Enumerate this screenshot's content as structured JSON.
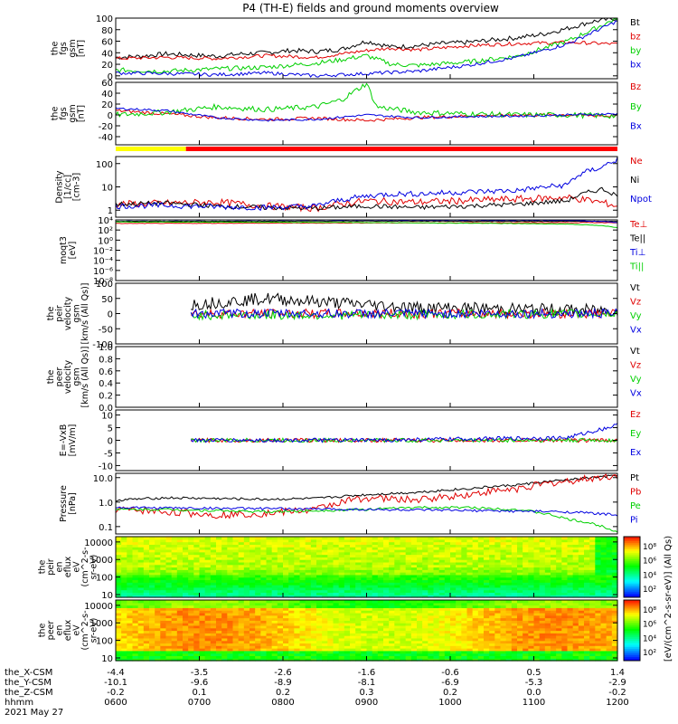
{
  "title": "P4 (TH-E) fields and ground moments overview",
  "colors": {
    "black": "#000000",
    "red": "#e00000",
    "green": "#00d000",
    "blue": "#0000e0",
    "yellow": "#ffff00",
    "barRed": "#ff0000"
  },
  "chart_data": [
    {
      "id": "fgs-gsm",
      "type": "line",
      "ylabel": [
        "the",
        "fgs",
        "gsm",
        "[nT]"
      ],
      "scale": "linear",
      "ylim": [
        -5,
        100
      ],
      "ticks": [
        "100",
        "80",
        "60",
        "40",
        "20",
        "0"
      ],
      "tickValues": [
        100,
        80,
        60,
        40,
        20,
        0
      ],
      "series": [
        {
          "name": "Bt",
          "color": "black",
          "x": [
            0,
            0.05,
            0.1,
            0.15,
            0.2,
            0.25,
            0.3,
            0.35,
            0.4,
            0.45,
            0.5,
            0.55,
            0.6,
            0.65,
            0.7,
            0.75,
            0.8,
            0.85,
            0.9,
            0.95,
            1
          ],
          "y": [
            32,
            34,
            38,
            36,
            34,
            38,
            40,
            44,
            42,
            46,
            60,
            50,
            52,
            56,
            58,
            62,
            66,
            72,
            82,
            94,
            100
          ],
          "noise": 4
        },
        {
          "name": "bz",
          "color": "red",
          "x": [
            0,
            0.1,
            0.2,
            0.3,
            0.4,
            0.5,
            0.55,
            0.6,
            0.7,
            0.8,
            0.9,
            1
          ],
          "y": [
            30,
            32,
            30,
            35,
            32,
            44,
            48,
            45,
            52,
            56,
            58,
            55
          ],
          "noise": 3
        },
        {
          "name": "by",
          "color": "green",
          "x": [
            0,
            0.1,
            0.2,
            0.3,
            0.4,
            0.45,
            0.5,
            0.55,
            0.6,
            0.7,
            0.8,
            0.9,
            1
          ],
          "y": [
            10,
            8,
            12,
            15,
            22,
            28,
            35,
            20,
            18,
            24,
            34,
            60,
            100
          ],
          "noise": 4
        },
        {
          "name": "bx",
          "color": "blue",
          "x": [
            0,
            0.1,
            0.2,
            0.3,
            0.4,
            0.5,
            0.6,
            0.7,
            0.8,
            0.9,
            1
          ],
          "y": [
            5,
            4,
            2,
            5,
            0,
            4,
            8,
            18,
            32,
            55,
            95
          ],
          "noise": 3
        }
      ]
    },
    {
      "id": "fgs-gsm-2",
      "type": "line",
      "ylabel": [
        "the",
        "fgs",
        "gsm",
        "[nT]"
      ],
      "scale": "linear",
      "ylim": [
        -55,
        60
      ],
      "ticks": [
        "60",
        "40",
        "20",
        "0",
        "-20",
        "-40"
      ],
      "tickValues": [
        60,
        40,
        20,
        0,
        -20,
        -40
      ],
      "series": [
        {
          "name": "Bz",
          "color": "red",
          "x": [
            0,
            0.1,
            0.2,
            0.3,
            0.4,
            0.5,
            0.6,
            0.7,
            0.8,
            0.9,
            1
          ],
          "y": [
            8,
            2,
            -5,
            -8,
            -6,
            -10,
            -5,
            -2,
            0,
            0,
            -2
          ],
          "noise": 3
        },
        {
          "name": "By",
          "color": "green",
          "x": [
            0,
            0.1,
            0.2,
            0.3,
            0.4,
            0.45,
            0.5,
            0.52,
            0.6,
            0.7,
            0.8,
            0.9,
            1
          ],
          "y": [
            0,
            5,
            15,
            10,
            15,
            28,
            58,
            15,
            5,
            2,
            0,
            0,
            -2
          ],
          "noise": 5
        },
        {
          "name": "Bx",
          "color": "blue",
          "x": [
            0,
            0.1,
            0.2,
            0.3,
            0.4,
            0.5,
            0.6,
            0.7,
            0.8,
            0.9,
            1
          ],
          "y": [
            12,
            8,
            -5,
            -10,
            -8,
            0,
            -5,
            -3,
            -2,
            0,
            2
          ],
          "noise": 2
        }
      ]
    },
    {
      "id": "density",
      "type": "line",
      "ylabel": [
        "Density",
        "[1/cc]",
        "[cm-3]"
      ],
      "scale": "log",
      "ylim": [
        0.5,
        200
      ],
      "ticks": [
        "100",
        "10",
        "1"
      ],
      "tickValues": [
        100,
        10,
        1
      ],
      "series": [
        {
          "name": "Ne",
          "color": "red",
          "x": [
            0,
            0.1,
            0.2,
            0.3,
            0.4,
            0.5,
            0.6,
            0.7,
            0.8,
            0.9,
            1
          ],
          "y": [
            1.8,
            2,
            2.2,
            1.5,
            1.2,
            2.5,
            2.2,
            2.6,
            3,
            3.5,
            1.5
          ],
          "noise": 0.15
        },
        {
          "name": "Ni",
          "color": "black",
          "x": [
            0,
            0.1,
            0.2,
            0.3,
            0.4,
            0.5,
            0.6,
            0.7,
            0.8,
            0.9,
            0.97,
            1
          ],
          "y": [
            1.8,
            2,
            1.5,
            1.3,
            1.2,
            1.5,
            1.3,
            1.5,
            1.8,
            2.5,
            8,
            4
          ],
          "noise": 0.1
        },
        {
          "name": "Npot",
          "color": "blue",
          "x": [
            0,
            0.1,
            0.2,
            0.3,
            0.4,
            0.5,
            0.55,
            0.6,
            0.7,
            0.8,
            0.9,
            0.97,
            1
          ],
          "y": [
            1.5,
            1.6,
            1.4,
            1.3,
            1.5,
            4,
            5,
            5,
            6,
            7,
            12,
            70,
            150
          ],
          "noise": 0.12
        }
      ]
    },
    {
      "id": "moqt3",
      "type": "line",
      "ylabel": [
        "moqt3",
        "[eV]"
      ],
      "scale": "log",
      "ylim": [
        1e-08,
        10000.0
      ],
      "ticks": [
        "10⁴",
        "10²",
        "10⁰",
        "10⁻²",
        "10⁻⁴",
        "10⁻⁶",
        "10⁻⁸"
      ],
      "tickValues": [
        10000,
        100,
        1,
        0.01,
        0.0001,
        1e-06,
        1e-08
      ],
      "series": [
        {
          "name": "Te⊥",
          "color": "red",
          "x": [
            0,
            0.5,
            1
          ],
          "y": [
            2000,
            2500,
            3000
          ],
          "noise": 0.05
        },
        {
          "name": "Te||",
          "color": "black",
          "x": [
            0,
            0.5,
            1
          ],
          "y": [
            5000,
            6000,
            5000
          ],
          "noise": 0.05
        },
        {
          "name": "Ti⊥",
          "color": "blue",
          "x": [
            0,
            0.5,
            0.9,
            1
          ],
          "y": [
            10000,
            9000,
            8000,
            3000
          ],
          "noise": 0.05
        },
        {
          "name": "Ti||",
          "color": "green",
          "x": [
            0,
            0.5,
            0.9,
            1
          ],
          "y": [
            4000,
            3000,
            1500,
            300
          ],
          "noise": 0.05
        }
      ]
    },
    {
      "id": "peir-velocity",
      "type": "line",
      "ylabel": [
        "the",
        "peir",
        "velocity",
        "gsm",
        "[km/s (All Qs)]"
      ],
      "scale": "linear",
      "ylim": [
        -100,
        100
      ],
      "ticks": [
        "100",
        "50",
        "0",
        "-50",
        "-100"
      ],
      "tickValues": [
        100,
        50,
        0,
        -50,
        -100
      ],
      "dataStart": 0.15,
      "series": [
        {
          "name": "Vt",
          "color": "black",
          "x": [
            0.15,
            0.3,
            0.4,
            0.5,
            0.6,
            0.8,
            1
          ],
          "y": [
            30,
            50,
            40,
            30,
            20,
            15,
            10
          ],
          "noise": 20
        },
        {
          "name": "Vz",
          "color": "red",
          "x": [
            0.15,
            0.5,
            1
          ],
          "y": [
            0,
            0,
            0
          ],
          "noise": 15
        },
        {
          "name": "Vy",
          "color": "green",
          "x": [
            0.15,
            0.5,
            1
          ],
          "y": [
            -5,
            -5,
            0
          ],
          "noise": 15
        },
        {
          "name": "Vx",
          "color": "blue",
          "x": [
            0.15,
            0.5,
            1
          ],
          "y": [
            0,
            0,
            0
          ],
          "noise": 15
        }
      ]
    },
    {
      "id": "peer-velocity",
      "type": "line",
      "ylabel": [
        "the",
        "peer",
        "velocity",
        "gsm",
        "[km/s (All Qs)]"
      ],
      "scale": "linear",
      "ylim": [
        0,
        1
      ],
      "ticks": [
        "1.0",
        "0.8",
        "0.6",
        "0.4",
        "0.2",
        "0.0"
      ],
      "tickValues": [
        1,
        0.8,
        0.6,
        0.4,
        0.2,
        0
      ],
      "series": [
        {
          "name": "Vt",
          "color": "black",
          "x": [],
          "y": []
        },
        {
          "name": "Vz",
          "color": "red",
          "x": [],
          "y": []
        },
        {
          "name": "Vy",
          "color": "green",
          "x": [],
          "y": []
        },
        {
          "name": "Vx",
          "color": "blue",
          "x": [],
          "y": []
        }
      ]
    },
    {
      "id": "e-vxb",
      "type": "line",
      "ylabel": [
        "E=-VxB",
        "[mV/m]"
      ],
      "scale": "linear",
      "ylim": [
        -12,
        12
      ],
      "ticks": [
        "10",
        "5",
        "0",
        "-5",
        "-10"
      ],
      "tickValues": [
        10,
        5,
        0,
        -5,
        -10
      ],
      "dataStart": 0.15,
      "series": [
        {
          "name": "Ez",
          "color": "red",
          "x": [
            0.15,
            0.5,
            1
          ],
          "y": [
            0,
            0,
            0
          ],
          "noise": 0.8
        },
        {
          "name": "Ey",
          "color": "green",
          "x": [
            0.15,
            0.5,
            1
          ],
          "y": [
            0,
            0,
            0
          ],
          "noise": 0.8
        },
        {
          "name": "Ex",
          "color": "blue",
          "x": [
            0.15,
            0.5,
            0.9,
            1
          ],
          "y": [
            0,
            0,
            1,
            6
          ],
          "noise": 0.8
        }
      ]
    },
    {
      "id": "pressure",
      "type": "line",
      "ylabel": [
        "Pressure",
        "[nPa]"
      ],
      "scale": "log",
      "ylim": [
        0.05,
        15
      ],
      "ticks": [
        "10.0",
        "1.0",
        "0.1"
      ],
      "tickValues": [
        10,
        1,
        0.1
      ],
      "series": [
        {
          "name": "Pt",
          "color": "black",
          "x": [
            0,
            0.1,
            0.2,
            0.3,
            0.4,
            0.5,
            0.6,
            0.7,
            0.8,
            0.9,
            1
          ],
          "y": [
            1.2,
            1.5,
            1.4,
            1.3,
            1.4,
            2,
            2.5,
            3.5,
            5,
            8,
            12
          ],
          "noise": 0.05
        },
        {
          "name": "Pb",
          "color": "red",
          "x": [
            0,
            0.1,
            0.2,
            0.3,
            0.4,
            0.5,
            0.6,
            0.7,
            0.8,
            0.9,
            1
          ],
          "y": [
            0.5,
            0.4,
            0.3,
            0.35,
            0.5,
            1.5,
            1.2,
            2,
            3.5,
            7,
            12
          ],
          "noise": 0.15
        },
        {
          "name": "Pe",
          "color": "green",
          "x": [
            0,
            0.1,
            0.2,
            0.3,
            0.4,
            0.5,
            0.6,
            0.7,
            0.8,
            0.9,
            1
          ],
          "y": [
            0.5,
            0.5,
            0.45,
            0.4,
            0.45,
            0.5,
            0.6,
            0.6,
            0.5,
            0.2,
            0.06
          ],
          "noise": 0.05
        },
        {
          "name": "Pi",
          "color": "blue",
          "x": [
            0,
            0.5,
            0.9,
            1
          ],
          "y": [
            0.6,
            0.5,
            0.4,
            0.3
          ],
          "noise": 0.05
        }
      ]
    },
    {
      "id": "peir-en-eflux",
      "type": "heatmap",
      "ylabel": [
        "the",
        "peir",
        "en",
        "eflux",
        "eV",
        "(cm^2-s-",
        "sr-eV)"
      ],
      "scale": "log",
      "ylim": [
        7,
        20000
      ],
      "ticks": [
        "10000",
        "1000",
        "100",
        "10"
      ],
      "tickValues": [
        10000,
        1000,
        100,
        10
      ],
      "colorbar": {
        "label": "[eV/(cm^2-s-sr-eV)] (All Qs)",
        "ticks": [
          "10⁸",
          "10⁶",
          "10⁴",
          "10²"
        ]
      }
    },
    {
      "id": "peer-en-eflux",
      "type": "heatmap",
      "ylabel": [
        "the",
        "peer",
        "en",
        "eflux",
        "eV",
        "(cm^2-s-",
        "sr-eV)"
      ],
      "scale": "log",
      "ylim": [
        7,
        20000
      ],
      "ticks": [
        "10000",
        "1000",
        "100",
        "10"
      ],
      "tickValues": [
        10000,
        1000,
        100,
        10
      ],
      "colorbar": {
        "label": "[eV/(cm^2-s-sr-eV)] (All Qs)",
        "ticks": [
          "10⁸",
          "10⁶",
          "10⁴",
          "10²"
        ]
      }
    }
  ],
  "xaxis": {
    "rowLabels": [
      "the_X-CSM",
      "the_Y-CSM",
      "the_Z-CSM",
      "hhmm",
      "2021 May 27"
    ],
    "columns": [
      {
        "x": "-4.4",
        "y": "-10.1",
        "z": "-0.2",
        "t": "0600"
      },
      {
        "x": "-3.5",
        "y": "-9.6",
        "z": "0.1",
        "t": "0700"
      },
      {
        "x": "-2.6",
        "y": "-8.9",
        "z": "0.2",
        "t": "0800"
      },
      {
        "x": "-1.6",
        "y": "-8.1",
        "z": "0.3",
        "t": "0900"
      },
      {
        "x": "-0.6",
        "y": "-6.9",
        "z": "0.2",
        "t": "1000"
      },
      {
        "x": "0.5",
        "y": "-5.3",
        "z": "0.0",
        "t": "1100"
      },
      {
        "x": "1.4",
        "y": "-2.9",
        "z": "-0.2",
        "t": "1200"
      }
    ]
  },
  "modeBar": {
    "segments": [
      {
        "from": 0,
        "to": 0.14,
        "color": "yellow"
      },
      {
        "from": 0.14,
        "to": 1,
        "color": "barRed"
      }
    ]
  }
}
